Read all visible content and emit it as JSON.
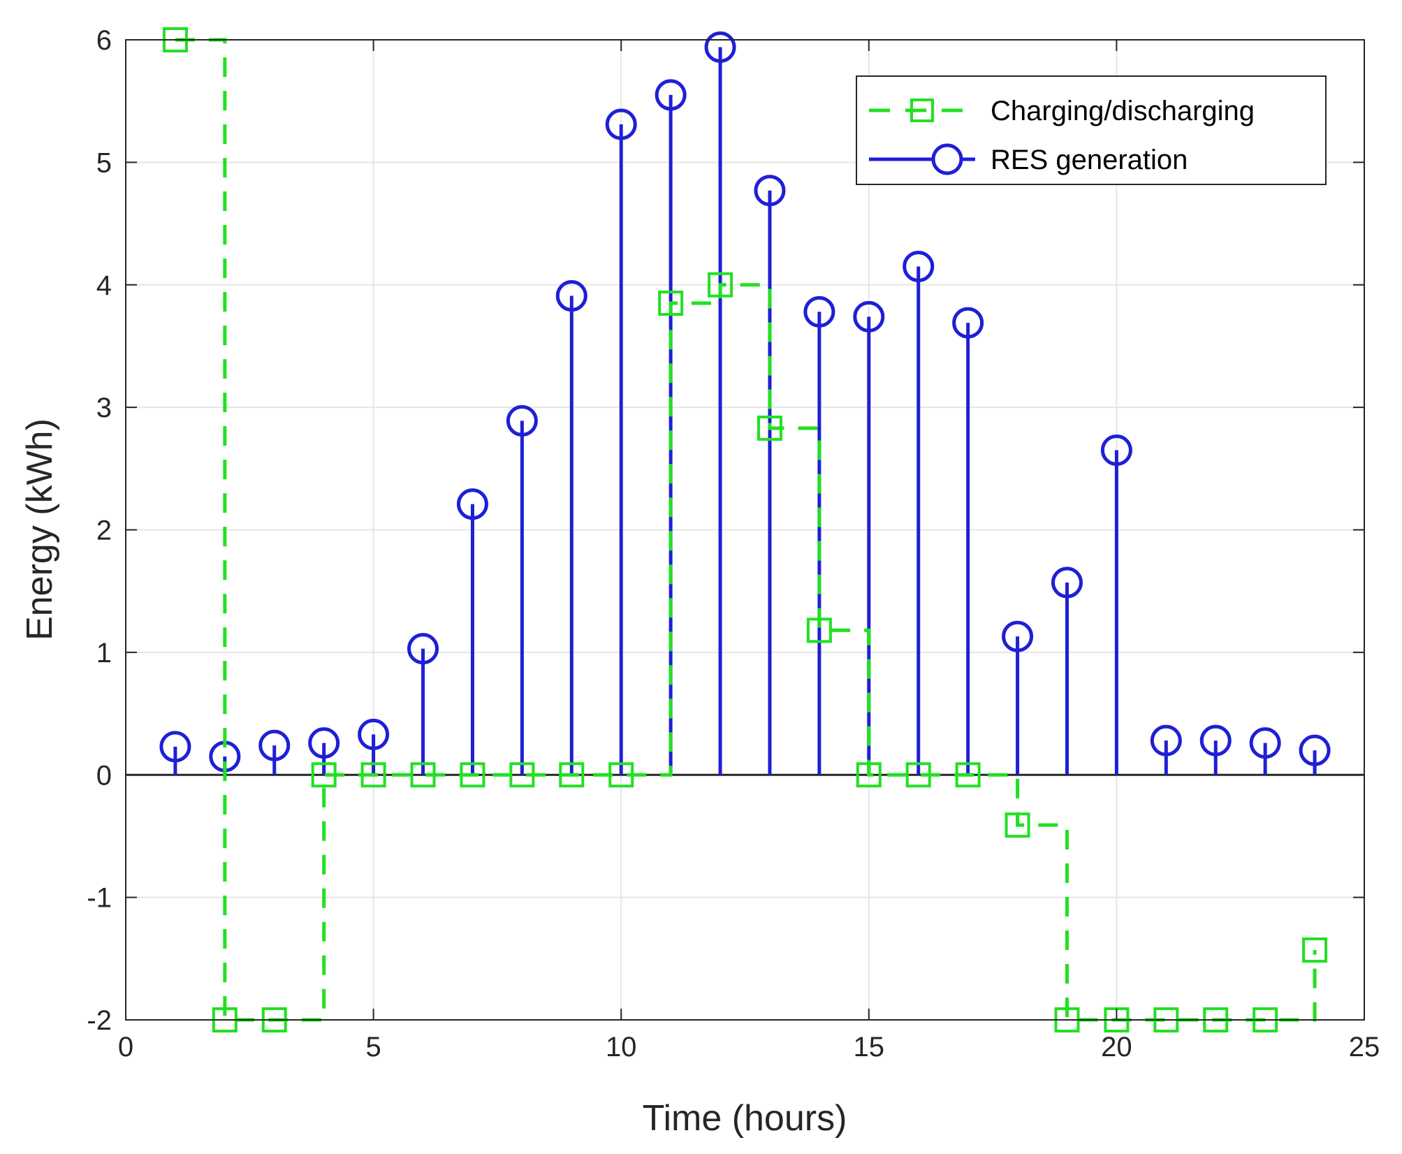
{
  "chart_data": {
    "type": "line",
    "title": "",
    "xlabel": "Time (hours)",
    "ylabel": "Energy (kWh)",
    "xlim": [
      0,
      25
    ],
    "ylim": [
      -2,
      6
    ],
    "xticks": [
      "0",
      "5",
      "10",
      "15",
      "20",
      "25"
    ],
    "yticks": [
      "-2",
      "-1",
      "0",
      "1",
      "2",
      "3",
      "4",
      "5",
      "6"
    ],
    "grid": true,
    "legend_position": "top-right",
    "colors": {
      "charging": "#22e022",
      "res": "#1f1fd6",
      "axes": "#262626",
      "grid": "#e6e6e6"
    },
    "x": [
      1,
      2,
      3,
      4,
      5,
      6,
      7,
      8,
      9,
      10,
      11,
      12,
      13,
      14,
      15,
      16,
      17,
      18,
      19,
      20,
      21,
      22,
      23,
      24
    ],
    "series": [
      {
        "name": "Charging/discharging",
        "style": "dashed-stairs-square-marker",
        "values": [
          6,
          -2,
          -2,
          0,
          0,
          0,
          0,
          0,
          0,
          0,
          3.85,
          4.0,
          2.83,
          1.18,
          0,
          0,
          0,
          -0.41,
          -2,
          -2,
          -2,
          -2,
          -2,
          -1.43
        ]
      },
      {
        "name": "RES generation",
        "style": "stem-circle-marker",
        "values": [
          0.23,
          0.15,
          0.24,
          0.26,
          0.33,
          1.03,
          2.21,
          2.89,
          3.91,
          5.31,
          5.55,
          5.94,
          4.77,
          3.78,
          3.74,
          4.15,
          3.69,
          1.13,
          1.57,
          2.65,
          0.28,
          0.28,
          0.26,
          0.2
        ]
      }
    ]
  }
}
